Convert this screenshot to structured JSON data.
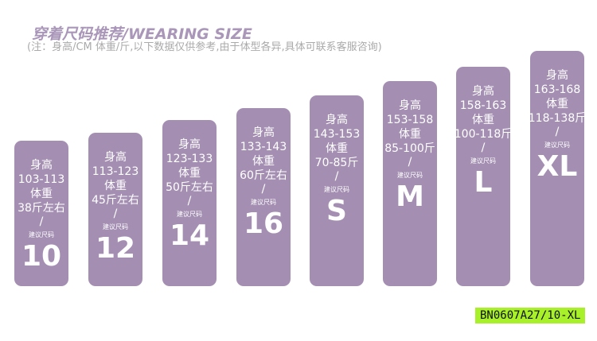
{
  "title": "穿着尺码推荐/WEARING SIZE",
  "note": "(注：身高/CM  体重/斤,以下数据仅供参考,由于体型各异,具体可联系客服咨询)",
  "bar_color": "#a48fb3",
  "sizes": [
    {
      "h_label": "身高",
      "height": "103-113",
      "w_label": "体重",
      "weight": "38斤左右",
      "slash": "/",
      "rec": "建议尺码",
      "size": "10"
    },
    {
      "h_label": "身高",
      "height": "113-123",
      "w_label": "体重",
      "weight": "45斤左右",
      "slash": "/",
      "rec": "建议尺码",
      "size": "12"
    },
    {
      "h_label": "身高",
      "height": "123-133",
      "w_label": "体重",
      "weight": "50斤左右",
      "slash": "/",
      "rec": "建议尺码",
      "size": "14"
    },
    {
      "h_label": "身高",
      "height": "133-143",
      "w_label": "体重",
      "weight": "60斤左右",
      "slash": "/",
      "rec": "建议尺码",
      "size": "16"
    },
    {
      "h_label": "身高",
      "height": "143-153",
      "w_label": "体重",
      "weight": "70-85斤",
      "slash": "/",
      "rec": "建议尺码",
      "size": "S"
    },
    {
      "h_label": "身高",
      "height": "153-158",
      "w_label": "体重",
      "weight": "85-100斤",
      "slash": "/",
      "rec": "建议尺码",
      "size": "M"
    },
    {
      "h_label": "身高",
      "height": "158-163",
      "w_label": "体重",
      "weight": "100-118斤",
      "slash": "/",
      "rec": "建议尺码",
      "size": "L"
    },
    {
      "h_label": "身高",
      "height": "163-168",
      "w_label": "体重",
      "weight": "118-138斤",
      "slash": "/",
      "rec": "建议尺码",
      "size": "XL"
    }
  ],
  "code": "BN0607A27/10-XL"
}
